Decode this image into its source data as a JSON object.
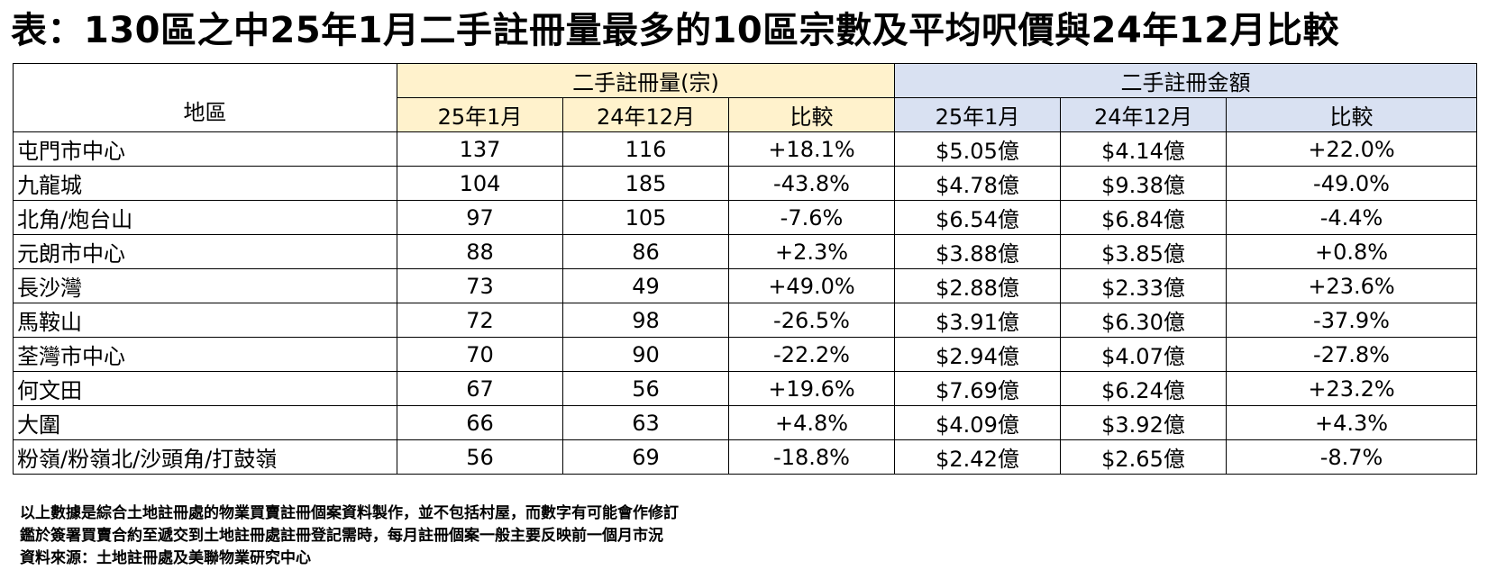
{
  "title": "表：130區之中25年1月二手註冊量最多的10區宗數及平均呎價與24年12月比較",
  "headers": {
    "area": "地區",
    "group_volume": "二手註冊量(宗)",
    "group_amount": "二手註冊金額",
    "sub": [
      "25年1月",
      "24年12月",
      "比較",
      "25年1月",
      "24年12月",
      "比較"
    ]
  },
  "rows": [
    {
      "area": "屯門市中心",
      "v_jan25": "137",
      "v_dec24": "116",
      "v_chg": "+18.1%",
      "a_jan25": "$5.05億",
      "a_dec24": "$4.14億",
      "a_chg": "+22.0%"
    },
    {
      "area": "九龍城",
      "v_jan25": "104",
      "v_dec24": "185",
      "v_chg": "-43.8%",
      "a_jan25": "$4.78億",
      "a_dec24": "$9.38億",
      "a_chg": "-49.0%"
    },
    {
      "area": "北角/炮台山",
      "v_jan25": "97",
      "v_dec24": "105",
      "v_chg": "-7.6%",
      "a_jan25": "$6.54億",
      "a_dec24": "$6.84億",
      "a_chg": "-4.4%"
    },
    {
      "area": "元朗市中心",
      "v_jan25": "88",
      "v_dec24": "86",
      "v_chg": "+2.3%",
      "a_jan25": "$3.88億",
      "a_dec24": "$3.85億",
      "a_chg": "+0.8%"
    },
    {
      "area": "長沙灣",
      "v_jan25": "73",
      "v_dec24": "49",
      "v_chg": "+49.0%",
      "a_jan25": "$2.88億",
      "a_dec24": "$2.33億",
      "a_chg": "+23.6%"
    },
    {
      "area": "馬鞍山",
      "v_jan25": "72",
      "v_dec24": "98",
      "v_chg": "-26.5%",
      "a_jan25": "$3.91億",
      "a_dec24": "$6.30億",
      "a_chg": "-37.9%"
    },
    {
      "area": "荃灣市中心",
      "v_jan25": "70",
      "v_dec24": "90",
      "v_chg": "-22.2%",
      "a_jan25": "$2.94億",
      "a_dec24": "$4.07億",
      "a_chg": "-27.8%"
    },
    {
      "area": "何文田",
      "v_jan25": "67",
      "v_dec24": "56",
      "v_chg": "+19.6%",
      "a_jan25": "$7.69億",
      "a_dec24": "$6.24億",
      "a_chg": "+23.2%"
    },
    {
      "area": "大圍",
      "v_jan25": "66",
      "v_dec24": "63",
      "v_chg": "+4.8%",
      "a_jan25": "$4.09億",
      "a_dec24": "$3.92億",
      "a_chg": "+4.3%"
    },
    {
      "area": "粉嶺/粉嶺北/沙頭角/打鼓嶺",
      "v_jan25": "56",
      "v_dec24": "69",
      "v_chg": "-18.8%",
      "a_jan25": "$2.42億",
      "a_dec24": "$2.65億",
      "a_chg": "-8.7%"
    }
  ],
  "notes": [
    "以上數據是綜合土地註冊處的物業買賣註冊個案資料製作，並不包括村屋，而數字有可能會作修訂",
    "鑑於簽署買賣合約至遞交到土地註冊處註冊登記需時，每月註冊個案一般主要反映前一個月市況",
    "資料來源：土地註冊處及美聯物業研究中心"
  ],
  "colors": {
    "volume_header_bg": "#fff2cc",
    "amount_header_bg": "#d9e1f2"
  }
}
